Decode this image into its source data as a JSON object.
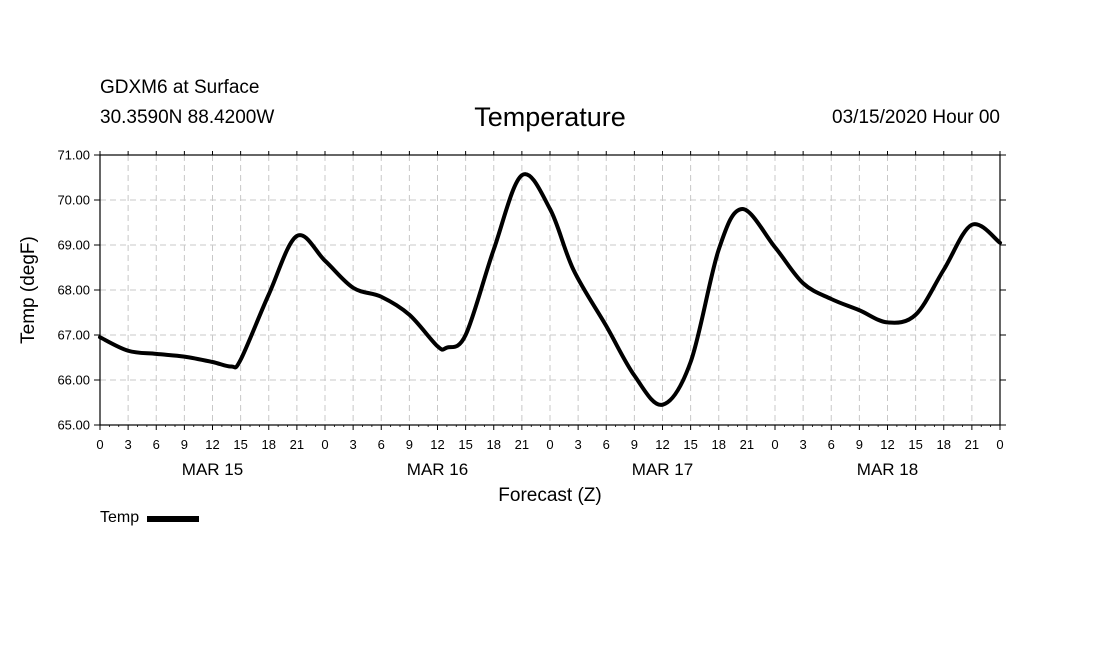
{
  "header": {
    "station": "GDXM6 at Surface",
    "coords": "30.3590N 88.4200W",
    "title": "Temperature",
    "datetime": "03/15/2020 Hour 00"
  },
  "legend": {
    "label": "Temp"
  },
  "chart_data": {
    "type": "line",
    "title": "Temperature",
    "xlabel": "Forecast (Z)",
    "ylabel": "Temp (degF)",
    "ylim": [
      65.0,
      71.0
    ],
    "yticks": [
      "65.00",
      "66.00",
      "67.00",
      "68.00",
      "69.00",
      "70.00",
      "71.00"
    ],
    "xlim": [
      0,
      96
    ],
    "xticks": [
      0,
      3,
      6,
      9,
      12,
      15,
      18,
      21,
      24,
      27,
      30,
      33,
      36,
      39,
      42,
      45,
      48,
      51,
      54,
      57,
      60,
      63,
      66,
      69,
      72,
      75,
      78,
      81,
      84,
      87,
      90,
      93,
      96
    ],
    "xtick_labels": [
      "0",
      "3",
      "6",
      "9",
      "12",
      "15",
      "18",
      "21",
      "0",
      "3",
      "6",
      "9",
      "12",
      "15",
      "18",
      "21",
      "0",
      "3",
      "6",
      "9",
      "12",
      "15",
      "18",
      "21",
      "0",
      "3",
      "6",
      "9",
      "12",
      "15",
      "18",
      "21",
      "0"
    ],
    "day_labels": [
      {
        "label": "MAR 15",
        "hour": 12
      },
      {
        "label": "MAR 16",
        "hour": 36
      },
      {
        "label": "MAR 17",
        "hour": 60
      },
      {
        "label": "MAR 18",
        "hour": 84
      }
    ],
    "grid": true,
    "legend": "bottom-left",
    "series": [
      {
        "name": "Temp",
        "color": "#000000",
        "x": [
          0,
          3,
          6,
          9,
          12,
          14,
          15,
          18,
          21,
          24,
          27,
          30,
          33,
          36,
          37,
          39,
          42,
          45,
          48,
          50.5,
          54,
          57,
          60,
          63,
          66,
          68.5,
          72,
          75,
          78,
          81,
          84,
          87,
          90,
          93,
          96
        ],
        "values": [
          66.95,
          66.65,
          66.58,
          66.52,
          66.4,
          66.3,
          66.45,
          67.9,
          69.2,
          68.65,
          68.05,
          67.85,
          67.45,
          66.75,
          66.72,
          67.0,
          68.9,
          70.55,
          69.8,
          68.45,
          67.2,
          66.1,
          65.45,
          66.4,
          68.9,
          69.8,
          68.95,
          68.15,
          67.8,
          67.55,
          67.28,
          67.45,
          68.45,
          69.45,
          69.05
        ]
      }
    ]
  }
}
